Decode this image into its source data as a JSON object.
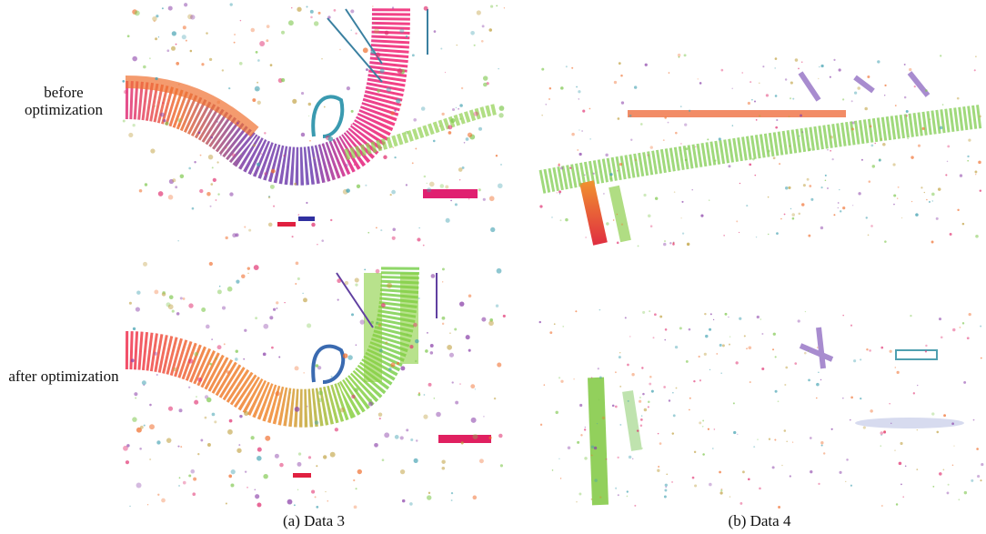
{
  "row_labels": [
    "before optimization",
    "after optimization"
  ],
  "captions": [
    "(a) Data 3",
    "(b) Data 4"
  ]
}
